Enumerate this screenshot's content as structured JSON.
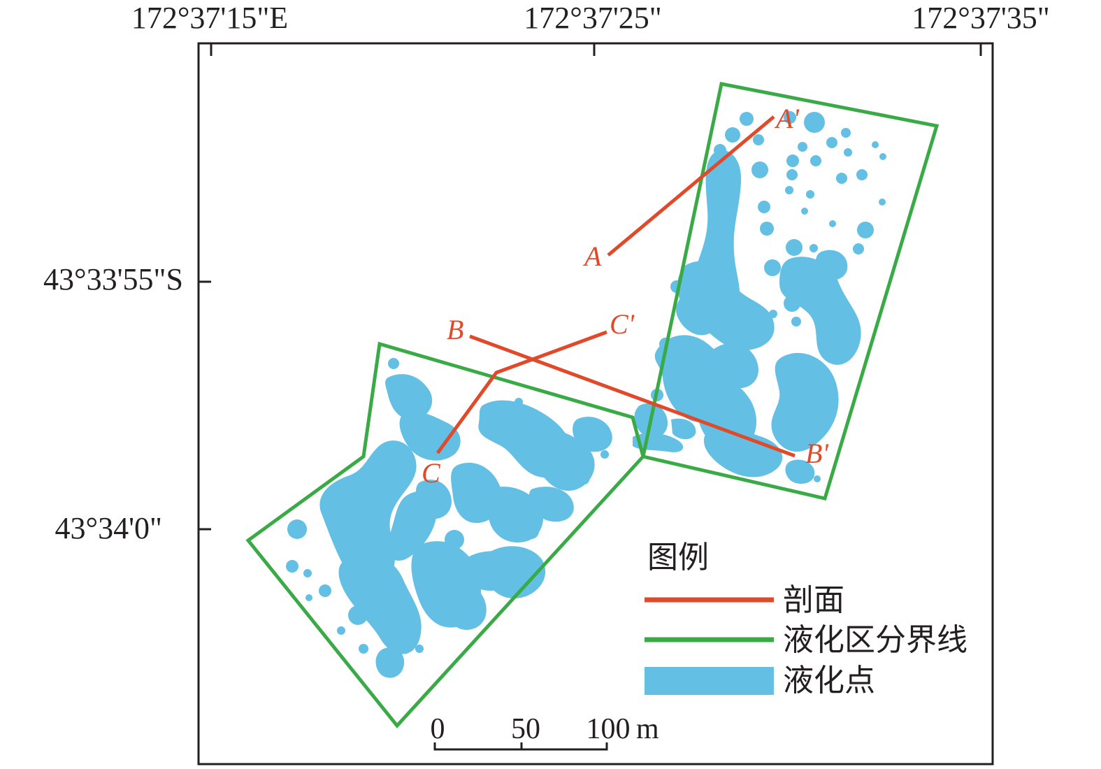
{
  "map": {
    "coords": {
      "top": [
        "172°37'15\"E",
        "172°37'25\"",
        "172°37'35\""
      ],
      "left": [
        "43°33'55\"S",
        "43°34'0\""
      ]
    },
    "profiles": [
      {
        "start": "A",
        "end": "A'"
      },
      {
        "start": "B",
        "end": "B'"
      },
      {
        "start": "C",
        "end": "C'"
      }
    ],
    "legend": {
      "title": "图例",
      "items": [
        {
          "label": "剖面",
          "color": "#e04a2a",
          "symbol": "line"
        },
        {
          "label": "液化区分界线",
          "color": "#3aaa47",
          "symbol": "line"
        },
        {
          "label": "液化点",
          "color": "#63bfe3",
          "symbol": "fill"
        }
      ]
    },
    "scalebar": {
      "ticks": [
        "0",
        "50",
        "100"
      ],
      "unit": "m"
    }
  }
}
